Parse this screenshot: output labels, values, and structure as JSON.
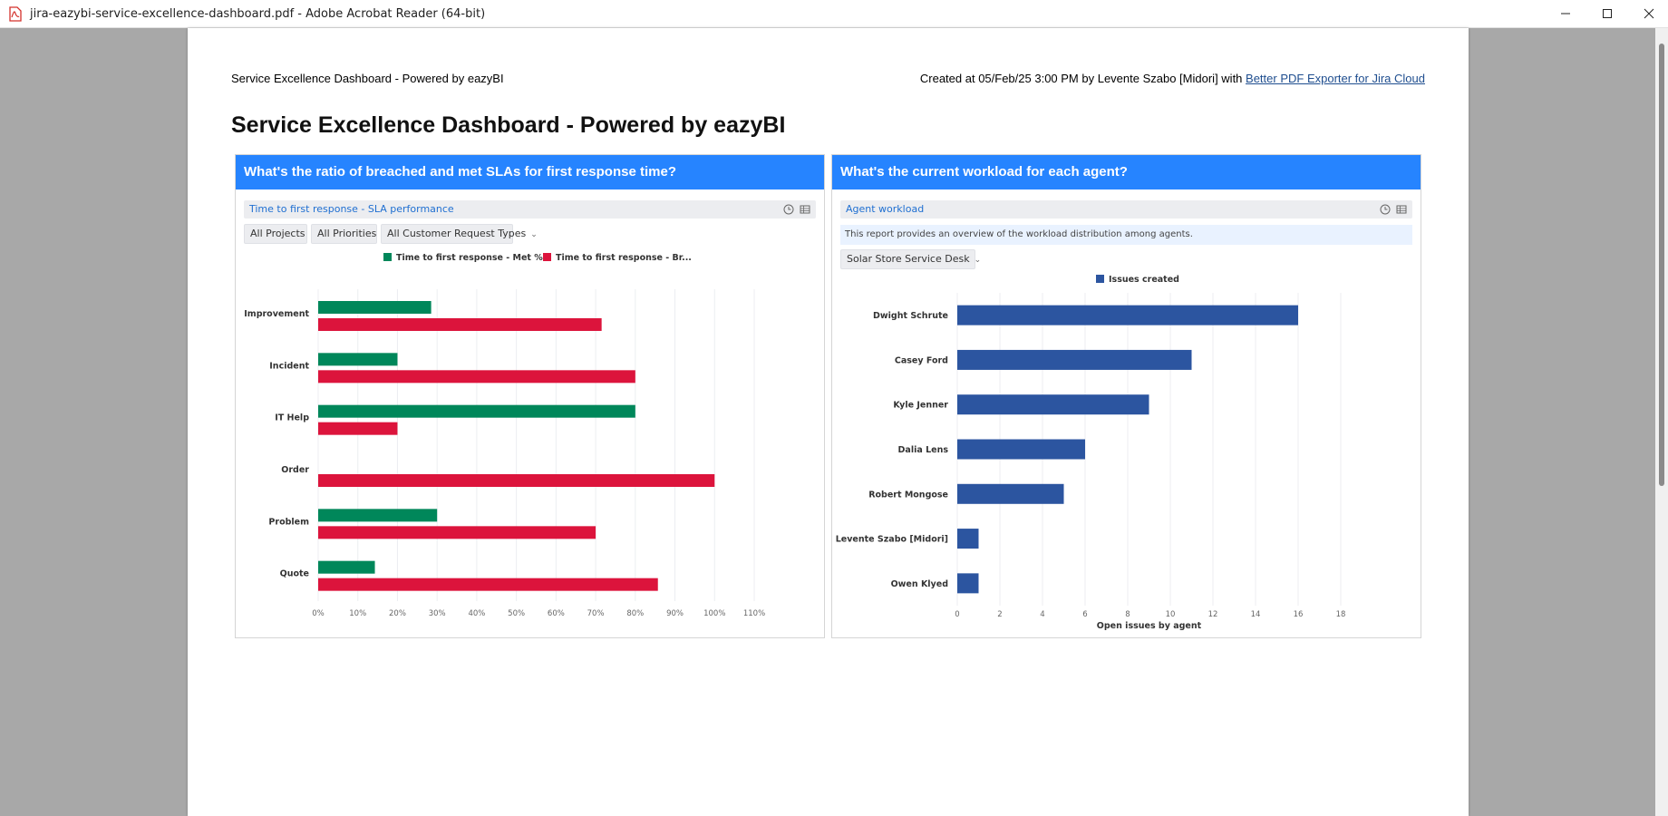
{
  "window": {
    "title": "jira-eazybi-service-excellence-dashboard.pdf - Adobe Acrobat Reader (64-bit)"
  },
  "document": {
    "header_left": "Service Excellence Dashboard - Powered by eazyBI",
    "header_right_prefix": "Created at 05/Feb/25 3:00 PM by Levente Szabo [Midori] with ",
    "header_right_link": "Better PDF Exporter for Jira Cloud",
    "title": "Service Excellence Dashboard - Powered by eazyBI"
  },
  "panels": {
    "left": {
      "heading": "What's the ratio of breached and met SLAs for first response time?",
      "report_title": "Time to first response - SLA performance",
      "filters": [
        "All Projects",
        "All Priorities",
        "All Customer Request Types"
      ]
    },
    "right": {
      "heading": "What's the current workload for each agent?",
      "report_title": "Agent workload",
      "description": "This report provides an overview of the workload distribution among agents.",
      "filter": "Solar Store Service Desk"
    }
  },
  "colors": {
    "met": "#00875a",
    "breached": "#dc143c",
    "issues": "#2c55a0",
    "panel_head": "#2684ff"
  },
  "chart_data": [
    {
      "type": "bar",
      "orientation": "horizontal",
      "categories": [
        "Improvement",
        "Incident",
        "IT Help",
        "Order",
        "Problem",
        "Quote"
      ],
      "series": [
        {
          "name": "Time to first response - Met %",
          "values": [
            28.5,
            20,
            80,
            0,
            30,
            14.3
          ]
        },
        {
          "name": "Time to first response - Br...",
          "values": [
            71.5,
            80,
            20,
            100,
            70,
            85.7
          ]
        }
      ],
      "xlim": [
        0,
        110
      ],
      "xticks": [
        "0%",
        "10%",
        "20%",
        "30%",
        "40%",
        "50%",
        "60%",
        "70%",
        "80%",
        "90%",
        "100%",
        "110%"
      ],
      "legend": "top",
      "grid": true
    },
    {
      "type": "bar",
      "orientation": "horizontal",
      "categories": [
        "Dwight Schrute",
        "Casey Ford",
        "Kyle Jenner",
        "Dalia Lens",
        "Robert Mongose",
        "Levente Szabo [Midori]",
        "Owen Klyed"
      ],
      "series": [
        {
          "name": "Issues created",
          "values": [
            16,
            11,
            9,
            6,
            5,
            1,
            1
          ]
        }
      ],
      "xlim": [
        0,
        18
      ],
      "xticks": [
        "0",
        "2",
        "4",
        "6",
        "8",
        "10",
        "12",
        "14",
        "16",
        "18"
      ],
      "xlabel": "Open issues by agent",
      "legend": "top",
      "grid": true
    }
  ]
}
